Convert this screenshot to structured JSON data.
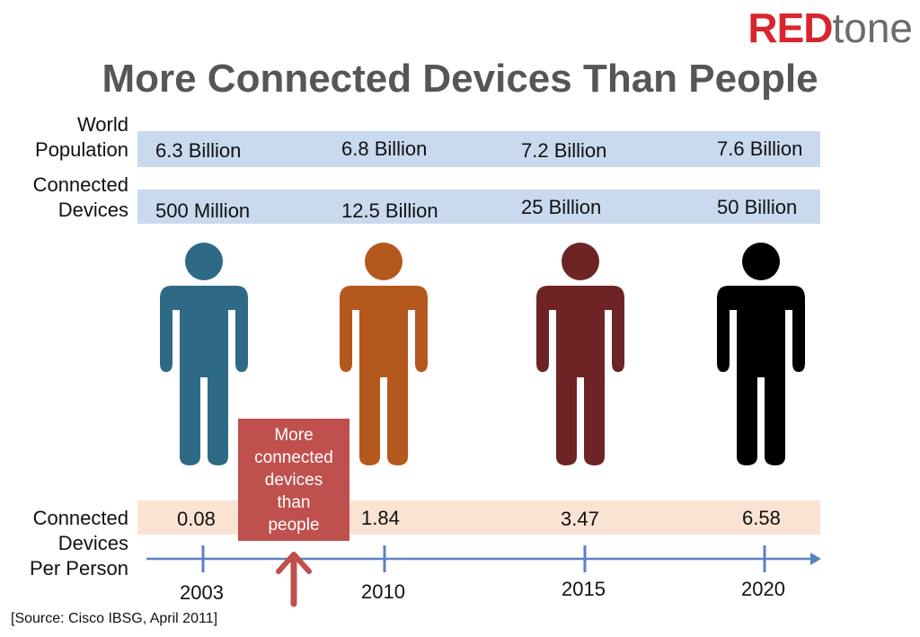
{
  "logo": {
    "red": "RED",
    "grey": "tone"
  },
  "title": "More Connected Devices Than People",
  "rows": {
    "population_label": [
      "World",
      "Population"
    ],
    "devices_label": [
      "Connected",
      "Devices"
    ],
    "per_person_label": [
      "Connected",
      "Devices",
      "Per Person"
    ]
  },
  "callout": [
    "More",
    "connected",
    "devices",
    "than",
    "people"
  ],
  "source": "[Source: Cisco IBSG, April 2011]",
  "colors": {
    "band_blue": "#c9d9ee",
    "band_peach": "#fae3d3",
    "axis": "#5b82c0",
    "callout": "#c0504d",
    "logo_red": "#d8262e",
    "person_2003": "#2e6a86",
    "person_2010": "#b5581e",
    "person_2015": "#6e2424",
    "person_2020": "#000000"
  },
  "chart_data": {
    "type": "table",
    "title": "More Connected Devices Than People",
    "categories": [
      "2003",
      "2010",
      "2015",
      "2020"
    ],
    "series": [
      {
        "name": "World Population",
        "values": [
          "6.3 Billion",
          "6.8 Billion",
          "7.2 Billion",
          "7.6 Billion"
        ]
      },
      {
        "name": "Connected Devices",
        "values": [
          "500 Million",
          "12.5 Billion",
          "25 Billion",
          "50 Billion"
        ]
      },
      {
        "name": "Connected Devices Per Person",
        "values": [
          "0.08",
          "1.84",
          "3.47",
          "6.58"
        ]
      }
    ],
    "annotation": "More connected devices than people",
    "source": "[Source: Cisco IBSG, April 2011]"
  }
}
